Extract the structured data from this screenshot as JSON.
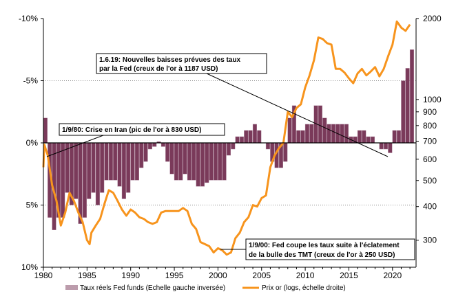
{
  "chart_data": {
    "type": "bar+line",
    "left_axis": {
      "ticks": [
        "-10%",
        "-5%",
        "0%",
        "5%",
        "10%"
      ],
      "tick_values": [
        -10,
        -5,
        0,
        5,
        10
      ],
      "range": [
        -10,
        10
      ],
      "inverted": true
    },
    "right_axis": {
      "ticks": [
        "2000",
        "1000",
        "900",
        "800",
        "700",
        "600",
        "500",
        "400",
        "300"
      ],
      "tick_values": [
        2000,
        1000,
        900,
        800,
        700,
        600,
        500,
        400,
        300
      ],
      "scale": "log",
      "range": [
        238,
        2000
      ]
    },
    "x_axis": {
      "ticks": [
        "1980",
        "1985",
        "1990",
        "1995",
        "2000",
        "2005",
        "2010",
        "2015",
        "2020"
      ],
      "range": [
        1980,
        2022.7
      ]
    },
    "grid": "horizontal dotted at -5%, 5%",
    "legend_placement": "bottom",
    "series": [
      {
        "name": "Taux réels Fed funds (Echelle gauche inversée)",
        "kind": "bar",
        "color": "#7a3a5a",
        "x": [
          1980,
          1980.5,
          1981,
          1981.5,
          1982,
          1982.5,
          1983,
          1983.5,
          1984,
          1984.5,
          1985,
          1985.5,
          1986,
          1986.5,
          1987,
          1987.5,
          1988,
          1988.5,
          1989,
          1989.5,
          1990,
          1990.5,
          1991,
          1991.5,
          1992,
          1992.5,
          1993,
          1993.5,
          1994,
          1994.5,
          1995,
          1995.5,
          1996,
          1996.5,
          1997,
          1997.5,
          1998,
          1998.5,
          1999,
          1999.5,
          2000,
          2000.5,
          2001,
          2001.5,
          2002,
          2002.5,
          2003,
          2003.5,
          2004,
          2004.5,
          2005,
          2005.5,
          2006,
          2006.5,
          2007,
          2007.5,
          2008,
          2008.5,
          2009,
          2009.5,
          2010,
          2010.5,
          2011,
          2011.5,
          2012,
          2012.5,
          2013,
          2013.5,
          2014,
          2014.5,
          2015,
          2015.5,
          2016,
          2016.5,
          2017,
          2017.5,
          2018,
          2018.5,
          2019,
          2019.5,
          2020,
          2020.5,
          2021,
          2021.5,
          2022
        ],
        "values": [
          -2,
          6,
          7,
          6,
          6,
          4,
          5,
          4.5,
          6.5,
          6,
          4.5,
          4,
          5,
          4,
          3,
          3,
          3,
          3.5,
          4.5,
          4,
          3,
          3,
          2,
          1.5,
          0.5,
          0.3,
          -0.1,
          0.3,
          1.5,
          2.5,
          3,
          3,
          2.5,
          3,
          3,
          3.5,
          3.5,
          3.2,
          3,
          3,
          3,
          3,
          1,
          0.5,
          -0.5,
          -0.5,
          -1,
          -1,
          -1.5,
          -1,
          0,
          0.5,
          1.5,
          2,
          2,
          1.5,
          -2,
          -3,
          -1,
          -1,
          -1.5,
          -1.5,
          -3,
          -3,
          -2,
          -1.5,
          -1.5,
          -1.5,
          -1.5,
          -1.5,
          -0.5,
          -0.5,
          -1,
          -1,
          -0.5,
          -0.5,
          0,
          0.5,
          0.5,
          0.8,
          -1,
          -1,
          -5,
          -6,
          -7.5
        ]
      },
      {
        "name": "Prix or (logs, échelle droite)",
        "kind": "line",
        "color": "#f7941d",
        "x": [
          1980,
          1980.1,
          1980.5,
          1981,
          1981.5,
          1982,
          1982.5,
          1983,
          1983.5,
          1984,
          1984.5,
          1985,
          1985.3,
          1985.5,
          1986,
          1986.5,
          1987,
          1987.5,
          1988,
          1988.5,
          1989,
          1989.5,
          1990,
          1990.5,
          1991,
          1991.5,
          1992,
          1992.5,
          1993,
          1993.5,
          1994,
          1994.5,
          1995,
          1995.5,
          1996,
          1996.5,
          1997,
          1997.5,
          1998,
          1998.5,
          1999,
          1999.5,
          2000,
          2000.5,
          2001,
          2001.5,
          2002,
          2002.5,
          2003,
          2003.5,
          2004,
          2004.5,
          2005,
          2005.5,
          2006,
          2006.5,
          2007,
          2007.5,
          2008,
          2008.5,
          2009,
          2009.5,
          2010,
          2010.5,
          2011,
          2011.5,
          2012,
          2012.5,
          2013,
          2013.5,
          2014,
          2014.5,
          2015,
          2015.5,
          2016,
          2016.5,
          2017,
          2017.5,
          2018,
          2018.5,
          2019,
          2019.5,
          2020,
          2020.5,
          2021,
          2021.5,
          2022
        ],
        "values": [
          560,
          680,
          620,
          480,
          420,
          340,
          380,
          450,
          420,
          380,
          350,
          300,
          290,
          320,
          340,
          360,
          410,
          460,
          450,
          420,
          390,
          370,
          390,
          380,
          365,
          360,
          350,
          345,
          350,
          380,
          385,
          385,
          385,
          385,
          395,
          385,
          345,
          330,
          295,
          290,
          285,
          270,
          280,
          275,
          265,
          270,
          305,
          320,
          350,
          365,
          405,
          400,
          430,
          440,
          560,
          620,
          660,
          690,
          900,
          860,
          930,
          960,
          1110,
          1230,
          1400,
          1700,
          1680,
          1620,
          1600,
          1300,
          1300,
          1260,
          1200,
          1150,
          1250,
          1300,
          1230,
          1270,
          1320,
          1220,
          1300,
          1450,
          1600,
          1950,
          1850,
          1800,
          1900
        ]
      }
    ],
    "annotations": [
      {
        "line1": "1.6.19: Nouvelles baisses prévues des taux",
        "line2": "par la Fed (creux de l'or à 1187 USD)"
      },
      {
        "line1": "1/9/80: Crise en Iran (pic de l'or à 830 USD)"
      },
      {
        "line1": "1/9/00: Fed coupe les taux suite à l'éclatement",
        "line2": "de la bulle des TMT (creux de l'or à 250 USD)"
      }
    ]
  }
}
